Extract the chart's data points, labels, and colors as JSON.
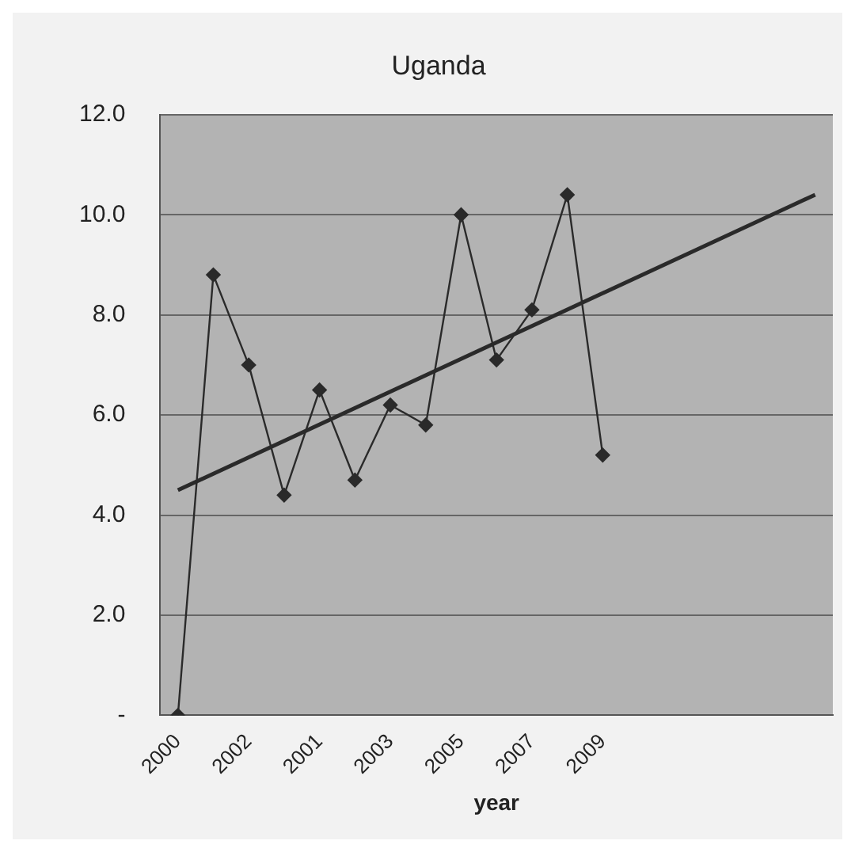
{
  "chart_data": {
    "type": "line",
    "title": "Uganda",
    "xlabel": "year",
    "categories": [
      "2000",
      null,
      "2002",
      null,
      "2001",
      null,
      "2003",
      null,
      "2005",
      null,
      "2007",
      null,
      "2009",
      null,
      null,
      null,
      null,
      null,
      null
    ],
    "series": [
      {
        "type": "line",
        "color": "#2a2a2a",
        "marker": "diamond",
        "values": [
          0,
          8.8,
          7.0,
          4.4,
          6.5,
          4.7,
          6.2,
          5.8,
          10.0,
          7.1,
          8.1,
          10.4,
          5.2,
          null,
          null,
          null,
          null,
          null,
          null
        ]
      },
      {
        "type": "line",
        "color": "#2a2a2a",
        "marker": "none",
        "values": [
          4.5,
          null,
          null,
          null,
          null,
          null,
          null,
          null,
          null,
          null,
          null,
          null,
          null,
          null,
          null,
          null,
          null,
          null,
          10.4
        ]
      }
    ],
    "ylim": [
      0,
      12
    ],
    "yticks": [
      {
        "value": 0,
        "label": "-"
      },
      {
        "value": 2,
        "label": "2.0"
      },
      {
        "value": 4,
        "label": "4.0"
      },
      {
        "value": 6,
        "label": "6.0"
      },
      {
        "value": 8,
        "label": "8.0"
      },
      {
        "value": 10,
        "label": "10.0"
      },
      {
        "value": 12,
        "label": "12.0"
      }
    ],
    "grid": "y",
    "legend": false
  }
}
